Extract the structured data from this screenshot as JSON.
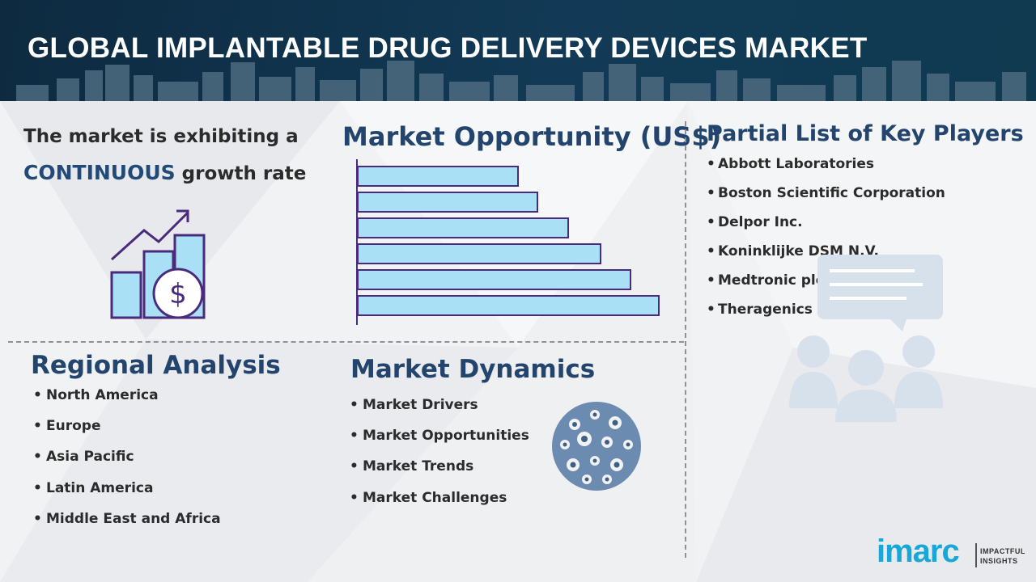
{
  "header": {
    "title": "GLOBAL IMPLANTABLE DRUG DELIVERY DEVICES MARKET"
  },
  "growth": {
    "line1": "The market is exhibiting a",
    "highlight": "CONTINUOUS",
    "line2_rest": " growth rate",
    "icon": "growth-chart-dollar-icon"
  },
  "opportunity": {
    "title": "Market Opportunity (US$)"
  },
  "chart_data": {
    "type": "bar",
    "orientation": "horizontal",
    "values": [
      198,
      222,
      260,
      300,
      337,
      372
    ],
    "bar_color": "#a9e0f5",
    "bar_stroke": "#4a2a7c"
  },
  "players": {
    "title": "Partial List of Key Players",
    "items": [
      "Abbott Laboratories",
      "Boston Scientific Corporation",
      "Delpor Inc.",
      "Koninklijke DSM N.V.",
      "Medtronic plc",
      "Theragenics Corporation"
    ],
    "icon": "people-chat-icon"
  },
  "regional": {
    "title": "Regional Analysis",
    "items": [
      "North America",
      "Europe",
      "Asia Pacific",
      "Latin America",
      "Middle East and Africa"
    ]
  },
  "dynamics": {
    "title": "Market Dynamics",
    "items": [
      "Market Drivers",
      "Market Opportunities",
      "Market Trends",
      "Market Challenges"
    ],
    "icon": "gears-sphere-icon"
  },
  "logo": {
    "word": "imarc",
    "tagline1": "IMPACTFUL",
    "tagline2": "INSIGHTS"
  },
  "colors": {
    "header_bg": "#123a56",
    "heading": "#23456d",
    "accent": "#19a7d8",
    "bullet_text": "#2b2b2b"
  }
}
